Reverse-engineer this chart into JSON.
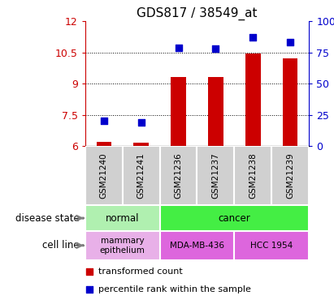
{
  "title": "GDS817 / 38549_at",
  "samples": [
    "GSM21240",
    "GSM21241",
    "GSM21236",
    "GSM21237",
    "GSM21238",
    "GSM21239"
  ],
  "bar_values": [
    6.2,
    6.15,
    9.3,
    9.3,
    10.45,
    10.2
  ],
  "bar_bottom": 6.0,
  "percentile_values": [
    20,
    19,
    79,
    78,
    87,
    83
  ],
  "ylim_left": [
    6,
    12
  ],
  "ylim_right": [
    0,
    100
  ],
  "yticks_left": [
    6,
    7.5,
    9,
    10.5,
    12
  ],
  "yticks_right": [
    0,
    25,
    50,
    75,
    100
  ],
  "bar_color": "#cc0000",
  "dot_color": "#0000cc",
  "disease_normal_color": "#b0f0b0",
  "disease_cancer_color": "#44ee44",
  "cell_normal_color": "#e8b0e8",
  "cell_cancer_color": "#dd66dd",
  "sample_bg_color": "#d0d0d0",
  "label_row1": "disease state",
  "label_row2": "cell line",
  "legend_red": "transformed count",
  "legend_blue": "percentile rank within the sample",
  "bg_color": "#ffffff"
}
